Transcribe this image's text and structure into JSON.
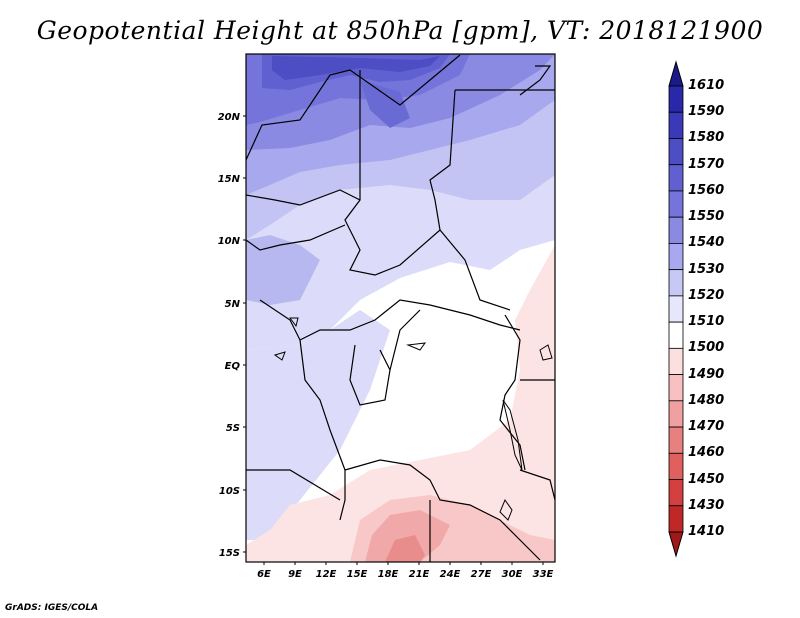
{
  "title": "Geopotential Height at 850hPa [gpm], VT: 2018121900",
  "credit": "GrADS: IGES/COLA",
  "map": {
    "lat_labels": [
      "20N",
      "15N",
      "10N",
      "5N",
      "EQ",
      "5S",
      "10S",
      "15S"
    ],
    "lon_labels": [
      "6E",
      "9E",
      "12E",
      "15E",
      "18E",
      "21E",
      "24E",
      "27E",
      "30E",
      "33E"
    ]
  },
  "colorbar": {
    "levels": [
      "1610",
      "1590",
      "1580",
      "1570",
      "1560",
      "1550",
      "1540",
      "1530",
      "1520",
      "1510",
      "1500",
      "1490",
      "1480",
      "1470",
      "1460",
      "1450",
      "1430",
      "1410"
    ],
    "colors": [
      "#1a1a8c",
      "#2828a8",
      "#3a3ab8",
      "#4d4dc4",
      "#6060d0",
      "#7474da",
      "#8a8ae2",
      "#a8a8ee",
      "#c8c8f6",
      "#e6e6fc",
      "#ffffff",
      "#fce0e0",
      "#f8c0c0",
      "#f0a0a0",
      "#e88080",
      "#e06060",
      "#d44040",
      "#c02828",
      "#a01818"
    ]
  }
}
